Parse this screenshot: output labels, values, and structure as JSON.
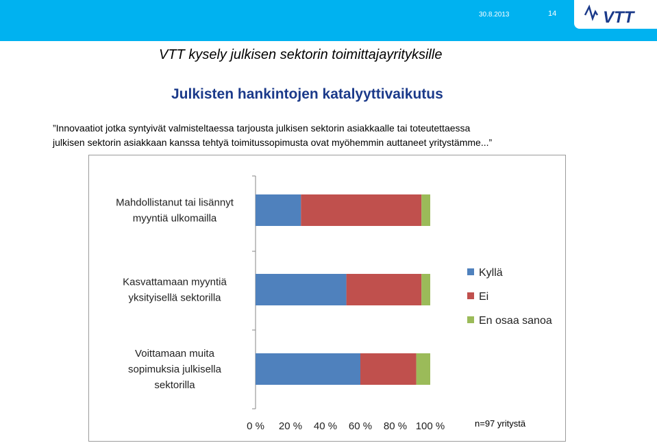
{
  "header": {
    "date": "30.8.2013",
    "page_number": "14",
    "logo_text": "VTT",
    "bar_color": "#00b2f0",
    "logo_color": "#1b3a8a"
  },
  "main_title": "VTT kysely julkisen sektorin toimittajayrityksille",
  "sub_title": "Julkisten hankintojen katalyyttivaikutus",
  "description": {
    "line1": "”Innovaatiot jotka syntyivät valmisteltaessa tarjousta julkisen sektorin asiakkaalle tai toteutettaessa",
    "line2": "julkisen sektorin asiakkaan kanssa tehtyä toimitussopimusta ovat myöhemmin auttaneet yritystämme...”"
  },
  "note": "n=97 yritystä",
  "chart_data": {
    "type": "bar",
    "orientation": "horizontal",
    "stacked": true,
    "categories": [
      [
        "Mahdollistanut tai lisännyt",
        "myyntiä ulkomailla"
      ],
      [
        "Kasvattamaan myyntiä",
        "yksityisellä sektorilla"
      ],
      [
        "Voittamaan muita",
        "sopimuksia julkisella",
        "sektorilla"
      ]
    ],
    "series": [
      {
        "name": "Kyllä",
        "color": "#4f81bd",
        "values": [
          26,
          52,
          60
        ]
      },
      {
        "name": "Ei",
        "color": "#c0504d",
        "values": [
          69,
          43,
          32
        ]
      },
      {
        "name": "En osaa sanoa",
        "color": "#9bbb59",
        "values": [
          5,
          5,
          8
        ]
      }
    ],
    "xlim": [
      0,
      100
    ],
    "x_ticks": [
      "0 %",
      "20 %",
      "40 %",
      "60 %",
      "80 %",
      "100 %"
    ],
    "legend_position": "right"
  }
}
